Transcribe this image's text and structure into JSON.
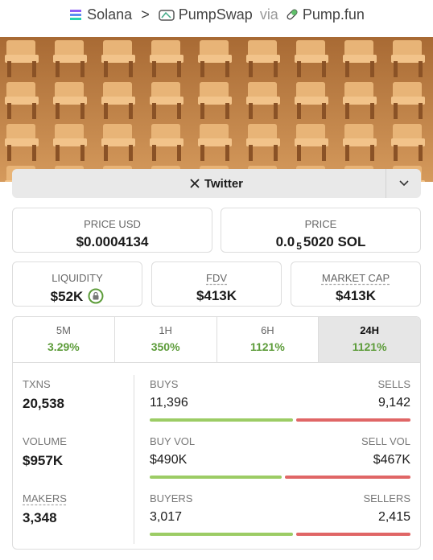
{
  "breadcrumb": {
    "chain": "Solana",
    "dex": "PumpSwap",
    "via": "via",
    "launchpad": "Pump.fun"
  },
  "social": {
    "label": "Twitter"
  },
  "price_usd": {
    "label": "PRICE USD",
    "value": "$0.0004134"
  },
  "price": {
    "label": "PRICE",
    "value_prefix": "0.0",
    "value_zeros": "5",
    "value_rest": "5020 SOL"
  },
  "stats": [
    {
      "label": "LIQUIDITY",
      "value": "$52K"
    },
    {
      "label": "FDV",
      "value": "$413K"
    },
    {
      "label": "MARKET CAP",
      "value": "$413K"
    }
  ],
  "tabs": [
    {
      "label": "5M",
      "change": "3.29%"
    },
    {
      "label": "1H",
      "change": "350%"
    },
    {
      "label": "6H",
      "change": "1121%"
    },
    {
      "label": "24H",
      "change": "1121%"
    }
  ],
  "selected_tab": 3,
  "metrics": [
    {
      "label": "TXNS",
      "value": "20,538",
      "left_label": "BUYS",
      "left_value": "11,396",
      "right_label": "SELLS",
      "right_value": "9,142"
    },
    {
      "label": "VOLUME",
      "value": "$957K",
      "left_label": "BUY VOL",
      "left_value": "$490K",
      "right_label": "SELL VOL",
      "right_value": "$467K"
    },
    {
      "label": "MAKERS",
      "value": "3,348",
      "left_label": "BUYERS",
      "left_value": "3,017",
      "right_label": "SELLERS",
      "right_value": "2,415"
    }
  ]
}
